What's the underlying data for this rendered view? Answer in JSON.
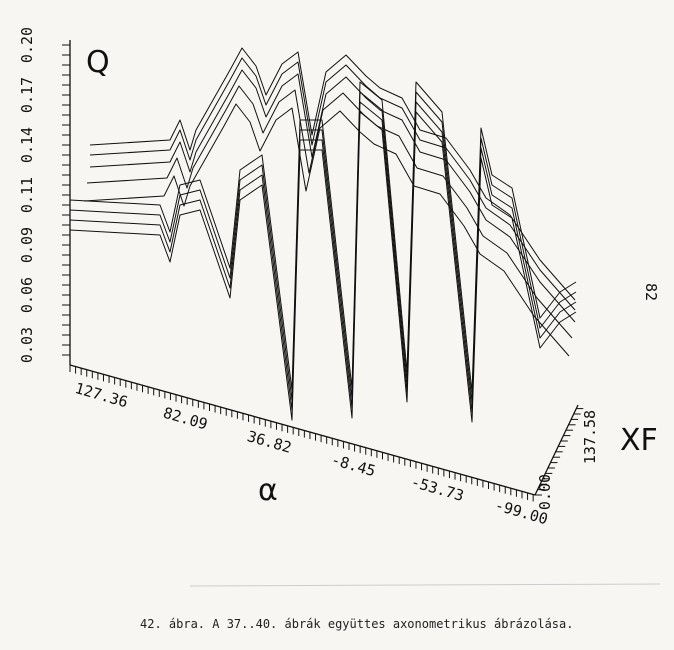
{
  "figure": {
    "z_axis": {
      "label": "Q",
      "ticks": [
        "0.03",
        "0.06",
        "0.09",
        "0.11",
        "0.14",
        "0.17",
        "0.20"
      ]
    },
    "x_axis": {
      "label": "α",
      "ticks": [
        "127.36",
        "82.09",
        "36.82",
        "-8.45",
        "-53.73",
        "-99.00"
      ]
    },
    "y_axis": {
      "label": "XF",
      "ticks": [
        "0.00",
        "137.58"
      ]
    }
  },
  "page_number": "82",
  "caption": "42. ábra. A 37..40. ábrák együttes axonometrikus ábrázolása."
}
